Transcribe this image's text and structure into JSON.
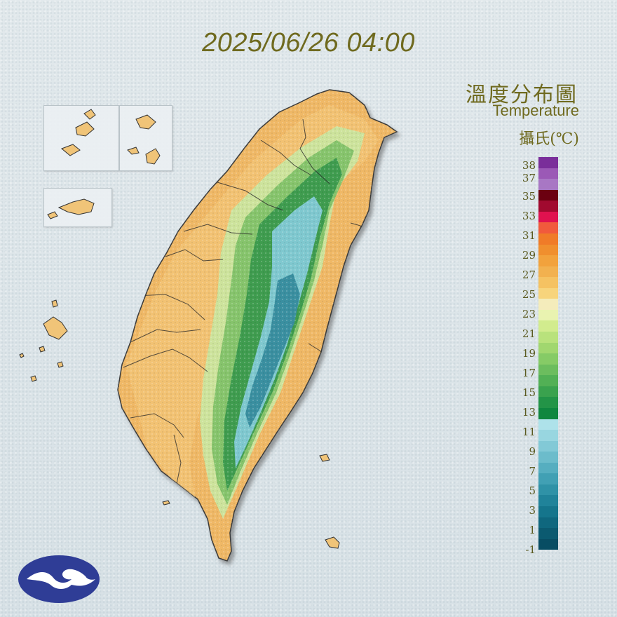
{
  "header": {
    "timestamp": "2025/06/26 04:00"
  },
  "legend": {
    "title_zh": "溫度分布圖",
    "title_en": "Temperature",
    "unit": "攝氏(℃)",
    "labels": [
      "38",
      "37",
      "35",
      "33",
      "31",
      "29",
      "27",
      "25",
      "23",
      "21",
      "19",
      "17",
      "15",
      "13",
      "11",
      "9",
      "7",
      "5",
      "3",
      "1",
      "-1"
    ],
    "colors": [
      "#7a2e9a",
      "#9b59b6",
      "#a877c4",
      "#6b0010",
      "#a10a2f",
      "#e0124f",
      "#f15a3c",
      "#f07b28",
      "#f08f2e",
      "#f2a23c",
      "#f2b14f",
      "#f5c262",
      "#f7d47c",
      "#f4ecbb",
      "#e9f3b0",
      "#d2ec8e",
      "#b9e27c",
      "#a1d76f",
      "#86cb66",
      "#6cbd5e",
      "#52b055",
      "#3aa24e",
      "#239447",
      "#0f873f",
      "#aee2ea",
      "#98d6e0",
      "#82c9d6",
      "#6cbccb",
      "#56aec0",
      "#41a0b4",
      "#2f92a7",
      "#20839a",
      "#15758c",
      "#0f677e",
      "#0b5a70",
      "#084d63"
    ]
  },
  "map": {
    "colors": {
      "lowland": "#efb866",
      "coastal": "#f4c77a",
      "hills_light": "#c9e29a",
      "hills_green": "#7ec06a",
      "forest": "#3f9c4f",
      "mountain_cyan": "#7fc8cf",
      "peak_teal": "#3a8fa0",
      "border": "#2a2a2a"
    }
  },
  "logo": {
    "icon": "cwa-cloud-wave-icon",
    "color": "#2f3d96"
  }
}
